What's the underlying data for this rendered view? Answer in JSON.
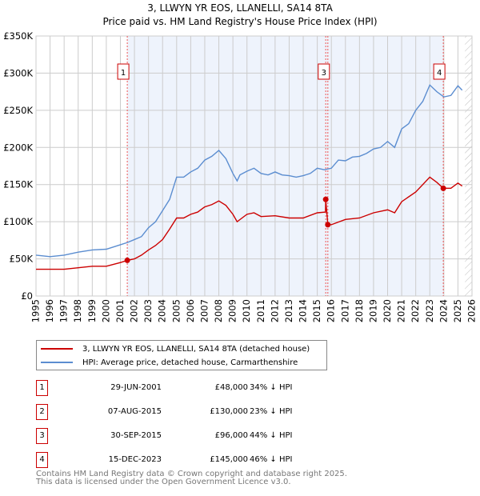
{
  "chart_data": {
    "type": "line",
    "title": "3, LLWYN YR EOS, LLANELLI, SA14 8TA",
    "subtitle": "Price paid vs. HM Land Registry's House Price Index (HPI)",
    "xlim": [
      1995,
      2026
    ],
    "ylim": [
      0,
      350000
    ],
    "yticks": [
      0,
      50000,
      100000,
      150000,
      200000,
      250000,
      300000,
      350000
    ],
    "ytick_labels": [
      "£0",
      "£50K",
      "£100K",
      "£150K",
      "£200K",
      "£250K",
      "£300K",
      "£350K"
    ],
    "xtick_labels": [
      "1995",
      "1996",
      "1997",
      "1998",
      "1999",
      "2000",
      "2001",
      "2002",
      "2003",
      "2004",
      "2005",
      "2006",
      "2007",
      "2008",
      "2009",
      "2010",
      "2011",
      "2012",
      "2013",
      "2014",
      "2015",
      "2016",
      "2017",
      "2018",
      "2019",
      "2020",
      "2021",
      "2022",
      "2023",
      "2024",
      "2025",
      "2026"
    ],
    "grid": true,
    "forecast_hatch_from": 2025.5,
    "series": [
      {
        "name": "3, LLWYN YR EOS, LLANELLI, SA14 8TA (detached house)",
        "color": "#cc0000",
        "x": [
          1995,
          1996,
          1997,
          1998,
          1999,
          2000,
          2001,
          2001.5,
          2002,
          2002.5,
          2003,
          2003.5,
          2004,
          2004.5,
          2005,
          2005.5,
          2006,
          2006.5,
          2007,
          2007.5,
          2008,
          2008.5,
          2009,
          2009.3,
          2010,
          2010.5,
          2011,
          2012,
          2013,
          2014,
          2015,
          2015.58,
          2015.6,
          2015.75,
          2016,
          2017,
          2018,
          2019,
          2020,
          2020.5,
          2021,
          2022,
          2023,
          2023.5,
          2023.96,
          2024.5,
          2025,
          2025.3
        ],
        "y": [
          36000,
          36000,
          36000,
          38000,
          40000,
          40000,
          45000,
          48000,
          50000,
          55000,
          62000,
          68000,
          76000,
          90000,
          105000,
          105000,
          110000,
          113000,
          120000,
          123000,
          128000,
          122000,
          110000,
          100000,
          110000,
          112000,
          107000,
          108000,
          105000,
          105000,
          112000,
          113000,
          130000,
          96000,
          96000,
          103000,
          105000,
          112000,
          116000,
          112000,
          127000,
          140000,
          160000,
          153000,
          145000,
          145000,
          152000,
          148000
        ]
      },
      {
        "name": "HPI: Average price, detached house, Carmarthenshire",
        "color": "#5b8dd0",
        "x": [
          1995,
          1996,
          1997,
          1998,
          1999,
          2000,
          2001,
          2001.5,
          2002,
          2002.5,
          2003,
          2003.5,
          2004,
          2004.5,
          2005,
          2005.5,
          2006,
          2006.5,
          2007,
          2007.5,
          2008,
          2008.5,
          2009,
          2009.3,
          2009.5,
          2010,
          2010.5,
          2011,
          2011.5,
          2012,
          2012.5,
          2013,
          2013.5,
          2014,
          2014.5,
          2015,
          2015.5,
          2016,
          2016.5,
          2017,
          2017.5,
          2018,
          2018.5,
          2019,
          2019.5,
          2020,
          2020.5,
          2021,
          2021.5,
          2022,
          2022.5,
          2023,
          2023.5,
          2024,
          2024.5,
          2025,
          2025.3
        ],
        "y": [
          55000,
          53000,
          55000,
          59000,
          62000,
          63000,
          69000,
          72000,
          76000,
          80000,
          92000,
          100000,
          115000,
          130000,
          160000,
          160000,
          167000,
          172000,
          183000,
          188000,
          196000,
          185000,
          165000,
          155000,
          163000,
          168000,
          172000,
          165000,
          163000,
          167000,
          163000,
          162000,
          160000,
          162000,
          165000,
          172000,
          170000,
          172000,
          183000,
          182000,
          187000,
          188000,
          192000,
          198000,
          200000,
          208000,
          200000,
          225000,
          232000,
          250000,
          262000,
          284000,
          275000,
          268000,
          270000,
          283000,
          277000
        ]
      }
    ],
    "sales": [
      {
        "id": "1",
        "x": 2001.49,
        "price": 48000,
        "date": "29-JUN-2001",
        "price_label": "£48,000",
        "delta": "34% ↓ HPI"
      },
      {
        "id": "2",
        "x": 2015.6,
        "price": 130000,
        "date": "07-AUG-2015",
        "price_label": "£130,000",
        "delta": "23% ↓ HPI"
      },
      {
        "id": "3",
        "x": 2015.75,
        "price": 96000,
        "date": "30-SEP-2015",
        "price_label": "£96,000",
        "delta": "44% ↓ HPI"
      },
      {
        "id": "4",
        "x": 2023.96,
        "price": 145000,
        "date": "15-DEC-2023",
        "price_label": "£145,000",
        "delta": "46% ↓ HPI"
      }
    ],
    "marker_labels_shown": [
      "1",
      "3",
      "4"
    ]
  },
  "footer": {
    "line1": "Contains HM Land Registry data © Crown copyright and database right 2025.",
    "line2": "This data is licensed under the Open Government Licence v3.0."
  }
}
